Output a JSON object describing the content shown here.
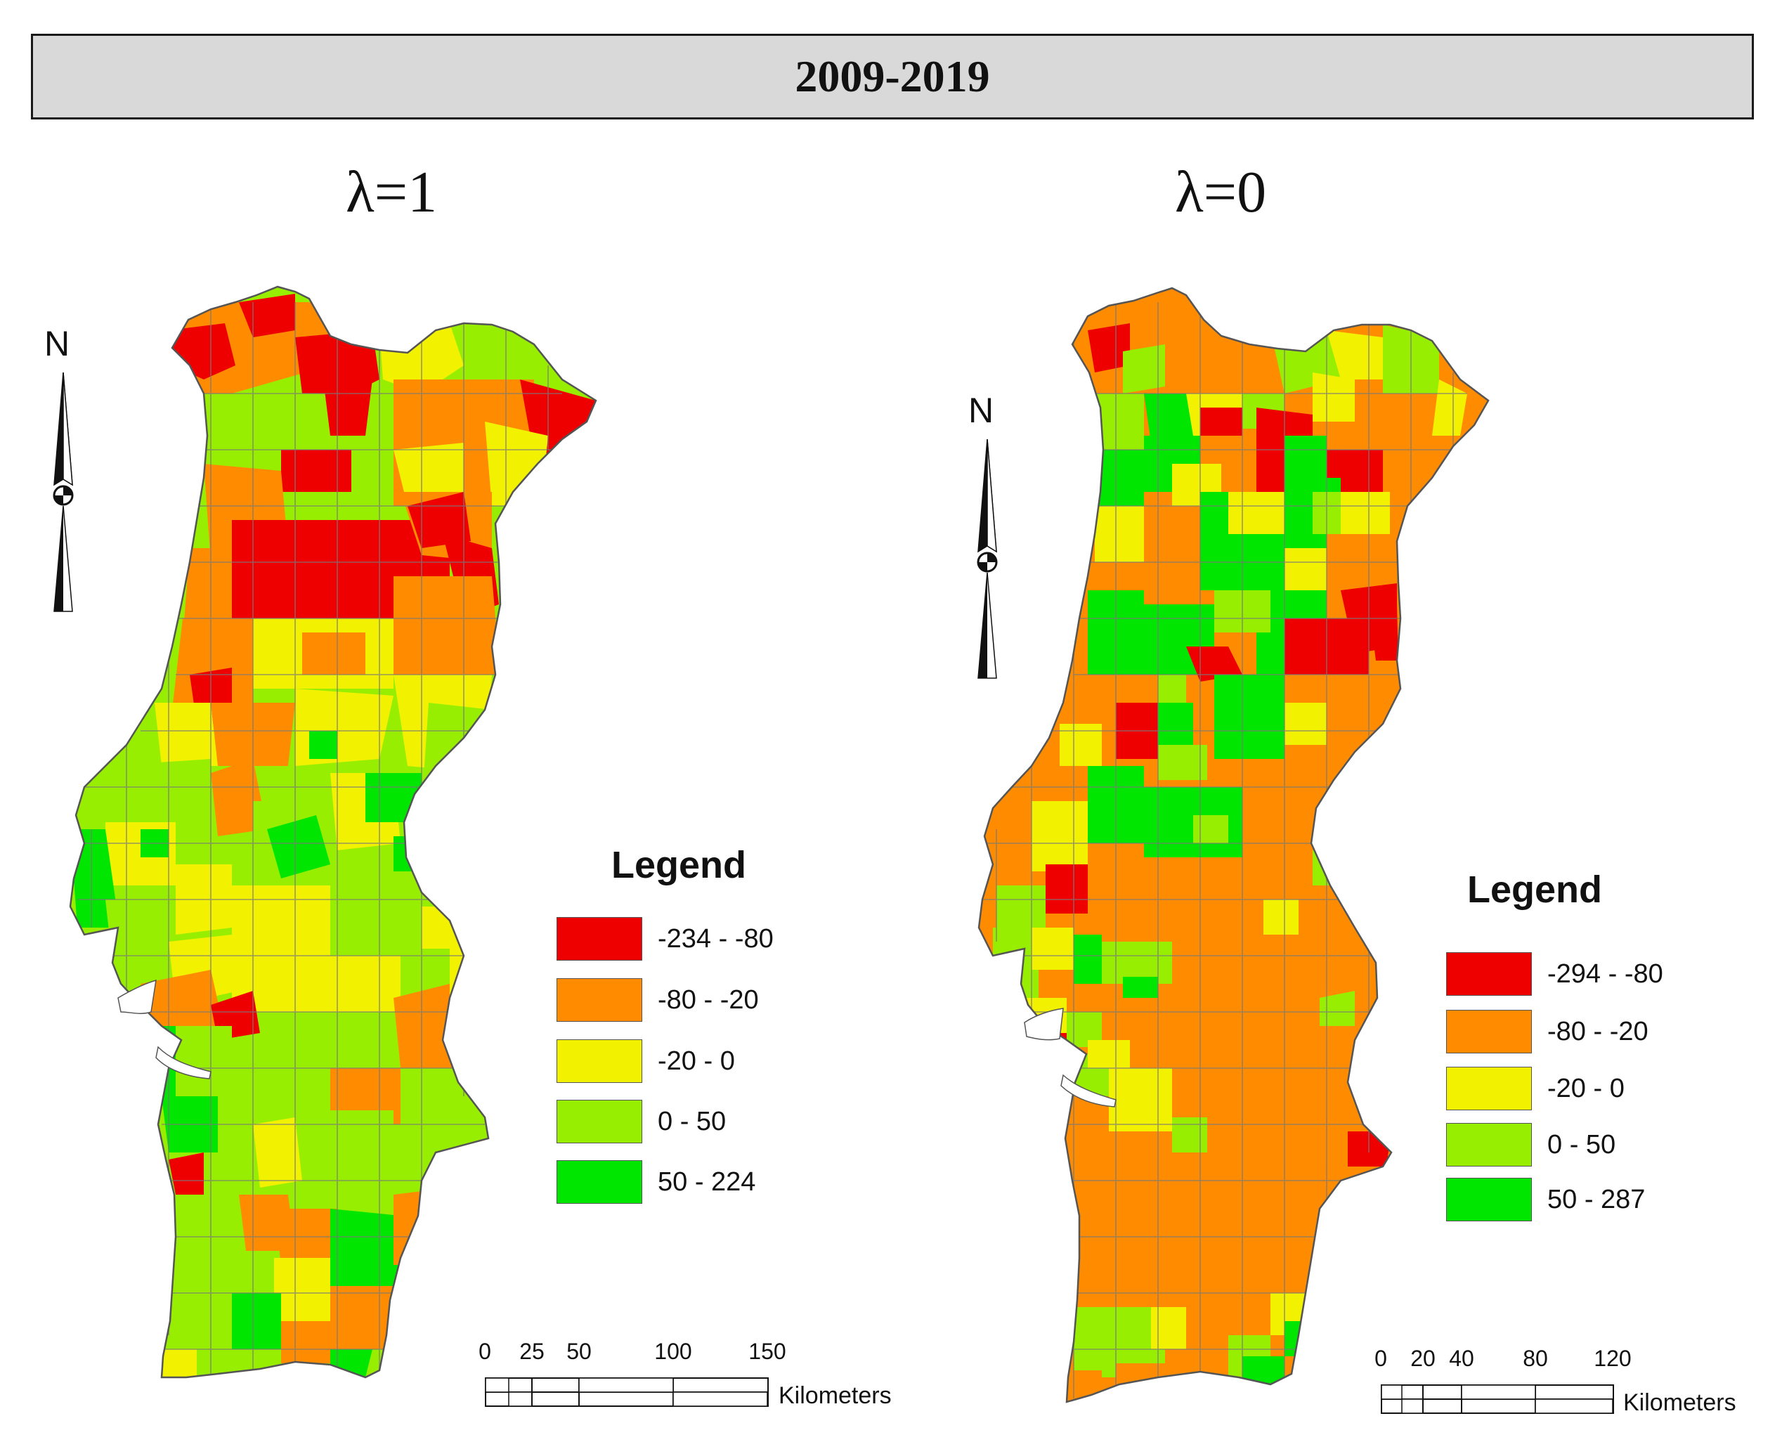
{
  "title": "2009-2019",
  "panels": [
    {
      "lambda_label": "λ=1",
      "north_label": "N",
      "legend": {
        "title": "Legend",
        "items": [
          {
            "label": "-234 - -80",
            "color": "#ee0000"
          },
          {
            "label": "-80 - -20",
            "color": "#ff8c00"
          },
          {
            "label": "-20 - 0",
            "color": "#f2f200"
          },
          {
            "label": "0 - 50",
            "color": "#98ee00"
          },
          {
            "label": "50 - 224",
            "color": "#00e600"
          }
        ]
      },
      "scale": {
        "ticks": [
          "0",
          "25",
          "50",
          "100",
          "150"
        ],
        "unit": "Kilometers"
      }
    },
    {
      "lambda_label": "λ=0",
      "north_label": "N",
      "legend": {
        "title": "Legend",
        "items": [
          {
            "label": "-294 - -80",
            "color": "#ee0000"
          },
          {
            "label": "-80 - -20",
            "color": "#ff8c00"
          },
          {
            "label": "-20 - 0",
            "color": "#f2f200"
          },
          {
            "label": "0 - 50",
            "color": "#98ee00"
          },
          {
            "label": "50 - 287",
            "color": "#00e600"
          }
        ]
      },
      "scale": {
        "ticks": [
          "0",
          "20",
          "40",
          "80",
          "120"
        ],
        "unit": "Kilometers"
      }
    }
  ]
}
